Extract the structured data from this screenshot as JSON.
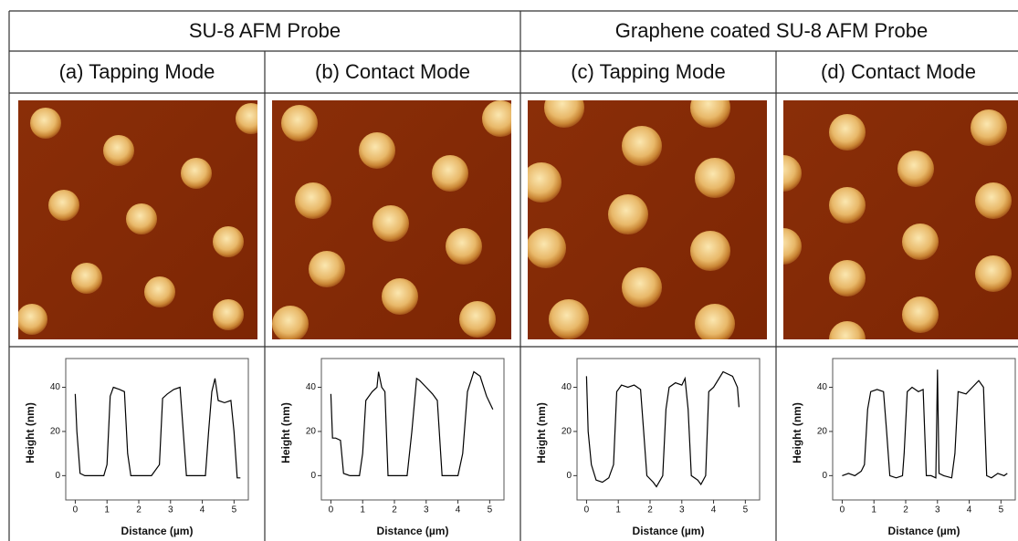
{
  "header": {
    "groups": [
      "SU-8 AFM Probe",
      "Graphene coated SU-8 AFM Probe"
    ],
    "columns": [
      "(a) Tapping Mode",
      "(b) Contact Mode",
      "(c) Tapping Mode",
      "(d) Contact Mode"
    ]
  },
  "chart_data": [
    {
      "type": "line",
      "xlabel": "Distance (µm)",
      "ylabel": "Height (nm)",
      "color": "#000000",
      "x": [
        0,
        0.05,
        0.15,
        0.3,
        0.6,
        0.9,
        1.0,
        1.1,
        1.2,
        1.4,
        1.55,
        1.65,
        1.75,
        2.0,
        2.4,
        2.65,
        2.75,
        2.9,
        3.1,
        3.3,
        3.4,
        3.5,
        3.8,
        4.1,
        4.2,
        4.3,
        4.4,
        4.5,
        4.7,
        4.9,
        5.0,
        5.1,
        5.2
      ],
      "values": [
        37,
        20,
        1,
        0,
        0,
        0,
        5,
        36,
        40,
        39,
        38,
        10,
        0,
        0,
        0,
        5,
        35,
        37,
        39,
        40,
        20,
        0,
        0,
        0,
        20,
        38,
        44,
        34,
        33,
        34,
        20,
        -1,
        -1
      ],
      "xlim": [
        -0.3,
        5.45
      ],
      "ylim": [
        -11,
        53
      ],
      "xticks": [
        0,
        1,
        2,
        3,
        4,
        5
      ],
      "yticks": [
        0,
        20,
        40
      ]
    },
    {
      "type": "line",
      "xlabel": "Distance (µm)",
      "ylabel": "Height (nm)",
      "color": "#000000",
      "x": [
        0,
        0.05,
        0.15,
        0.3,
        0.4,
        0.6,
        0.9,
        1.0,
        1.1,
        1.3,
        1.45,
        1.5,
        1.6,
        1.7,
        1.8,
        2.0,
        2.4,
        2.55,
        2.7,
        2.8,
        3.0,
        3.2,
        3.35,
        3.5,
        3.7,
        4.0,
        4.15,
        4.3,
        4.5,
        4.7,
        4.9,
        5.0,
        5.1
      ],
      "values": [
        37,
        17,
        17,
        16,
        1,
        0,
        0,
        10,
        34,
        38,
        40,
        47,
        40,
        38,
        0,
        0,
        0,
        20,
        44,
        43,
        40,
        37,
        34,
        0,
        0,
        0,
        10,
        38,
        47,
        45,
        36,
        33,
        30
      ],
      "xlim": [
        -0.3,
        5.45
      ],
      "ylim": [
        -11,
        53
      ],
      "xticks": [
        0,
        1,
        2,
        3,
        4,
        5
      ],
      "yticks": [
        0,
        20,
        40
      ]
    },
    {
      "type": "line",
      "xlabel": "Distance (µm)",
      "ylabel": "Height (nm)",
      "color": "#000000",
      "x": [
        0,
        0.05,
        0.15,
        0.3,
        0.5,
        0.7,
        0.85,
        0.95,
        1.1,
        1.3,
        1.5,
        1.7,
        1.8,
        1.9,
        2.1,
        2.2,
        2.4,
        2.5,
        2.6,
        2.8,
        3.0,
        3.1,
        3.2,
        3.3,
        3.5,
        3.6,
        3.75,
        3.85,
        4.0,
        4.3,
        4.6,
        4.75,
        4.8
      ],
      "values": [
        45,
        20,
        5,
        -2,
        -3,
        -1,
        5,
        38,
        41,
        40,
        41,
        39,
        20,
        0,
        -3,
        -5,
        0,
        30,
        40,
        42,
        41,
        44,
        30,
        0,
        -2,
        -4,
        0,
        38,
        40,
        47,
        45,
        40,
        31
      ],
      "xlim": [
        -0.3,
        5.45
      ],
      "ylim": [
        -11,
        53
      ],
      "xticks": [
        0,
        1,
        2,
        3,
        4,
        5
      ],
      "yticks": [
        0,
        20,
        40
      ]
    },
    {
      "type": "line",
      "xlabel": "Distance (µm)",
      "ylabel": "Height (nm)",
      "color": "#000000",
      "x": [
        0,
        0.2,
        0.4,
        0.6,
        0.7,
        0.8,
        0.9,
        1.1,
        1.3,
        1.4,
        1.5,
        1.7,
        1.9,
        1.95,
        2.05,
        2.2,
        2.4,
        2.55,
        2.65,
        2.8,
        2.95,
        3.0,
        3.05,
        3.2,
        3.45,
        3.55,
        3.65,
        3.9,
        4.1,
        4.3,
        4.45,
        4.55,
        4.7,
        4.9,
        5.1,
        5.2
      ],
      "values": [
        0,
        1,
        0,
        2,
        5,
        30,
        38,
        39,
        38,
        20,
        0,
        -1,
        0,
        10,
        38,
        40,
        38,
        39,
        0,
        0,
        -1,
        48,
        1,
        0,
        -1,
        10,
        38,
        37,
        40,
        43,
        40,
        0,
        -1,
        1,
        0,
        1
      ],
      "xlim": [
        -0.3,
        5.45
      ],
      "ylim": [
        -11,
        53
      ],
      "xticks": [
        0,
        1,
        2,
        3,
        4,
        5
      ],
      "yticks": [
        0,
        20,
        40
      ]
    }
  ]
}
